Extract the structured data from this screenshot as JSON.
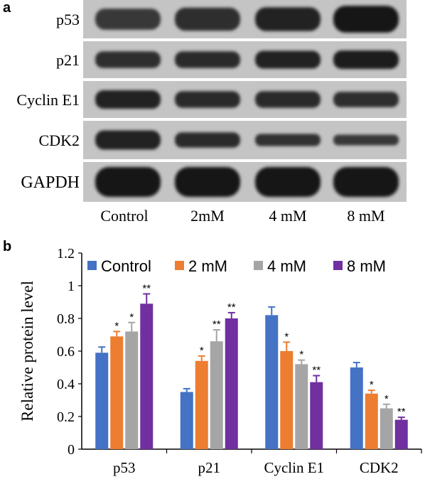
{
  "panel_a": {
    "label": "a",
    "rows": [
      {
        "name": "p53",
        "darkness": [
          0.78,
          0.82,
          0.86,
          0.92
        ],
        "thickness": [
          0.55,
          0.6,
          0.62,
          0.7
        ]
      },
      {
        "name": "p21",
        "darkness": [
          0.82,
          0.84,
          0.86,
          0.88
        ],
        "thickness": [
          0.45,
          0.45,
          0.48,
          0.5
        ]
      },
      {
        "name": "Cyclin E1",
        "darkness": [
          0.86,
          0.84,
          0.84,
          0.82
        ],
        "thickness": [
          0.5,
          0.45,
          0.45,
          0.42
        ]
      },
      {
        "name": "CDK2",
        "darkness": [
          0.86,
          0.84,
          0.8,
          0.78
        ],
        "thickness": [
          0.5,
          0.4,
          0.32,
          0.28
        ]
      },
      {
        "name": "GAPDH",
        "darkness": [
          0.92,
          0.92,
          0.92,
          0.92
        ],
        "thickness": [
          0.75,
          0.75,
          0.75,
          0.75
        ]
      }
    ],
    "lanes": [
      "Control",
      "2mM",
      "4 mM",
      "8 mM"
    ]
  },
  "panel_b": {
    "label": "b"
  },
  "chart_data": {
    "type": "bar",
    "categories": [
      "p53",
      "p21",
      "Cyclin E1",
      "CDK2"
    ],
    "series": [
      {
        "name": "Control",
        "color": "#4472C4",
        "values": [
          0.59,
          0.35,
          0.82,
          0.5
        ],
        "errors": [
          0.035,
          0.02,
          0.05,
          0.03
        ],
        "annotations": [
          "",
          "",
          "",
          ""
        ]
      },
      {
        "name": "2 mM",
        "color": "#ED7D31",
        "values": [
          0.69,
          0.54,
          0.6,
          0.34
        ],
        "errors": [
          0.03,
          0.03,
          0.055,
          0.02
        ],
        "annotations": [
          "*",
          "*",
          "*",
          "*"
        ]
      },
      {
        "name": "4 mM",
        "color": "#A5A5A5",
        "values": [
          0.72,
          0.66,
          0.52,
          0.25
        ],
        "errors": [
          0.055,
          0.07,
          0.025,
          0.025
        ],
        "annotations": [
          "*",
          "**",
          "*",
          "*"
        ]
      },
      {
        "name": "8 mM",
        "color": "#7030A0",
        "values": [
          0.89,
          0.8,
          0.41,
          0.18
        ],
        "errors": [
          0.06,
          0.035,
          0.04,
          0.015
        ],
        "annotations": [
          "**",
          "**",
          "**",
          "**"
        ]
      }
    ],
    "ylabel": "Relative protein level",
    "ylim": [
      0,
      1.2
    ],
    "yticks": [
      "0",
      "0.2",
      "0.4",
      "0.6",
      "0.8",
      "1",
      "1.2"
    ],
    "legend_position": "top",
    "grid": false
  }
}
